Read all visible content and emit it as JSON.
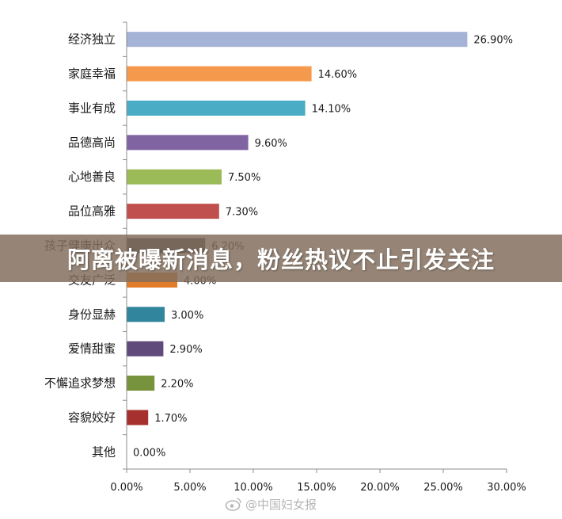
{
  "banner": {
    "title": "阿离被曝新消息，粉丝热议不止引发关注"
  },
  "watermark": {
    "text": "@中国妇女报",
    "icon": "weibo-icon"
  },
  "chart_data": {
    "type": "bar",
    "orientation": "horizontal",
    "categories": [
      "经济独立",
      "家庭幸福",
      "事业有成",
      "品德高尚",
      "心地善良",
      "品位高雅",
      "孩子健康出众",
      "交友广泛",
      "身份显赫",
      "爱情甜蜜",
      "不懈追求梦想",
      "容貌姣好",
      "其他"
    ],
    "values": [
      26.9,
      14.6,
      14.1,
      9.6,
      7.5,
      7.3,
      6.2,
      4.0,
      3.0,
      2.9,
      2.2,
      1.7,
      0.0
    ],
    "value_labels": [
      "26.90%",
      "14.60%",
      "14.10%",
      "9.60%",
      "7.50%",
      "7.30%",
      "6.20%",
      "4.00%",
      "3.00%",
      "2.90%",
      "2.20%",
      "1.70%",
      "0.00%"
    ],
    "colors": [
      "#a4b3d6",
      "#f59a4d",
      "#4bacc6",
      "#8064a2",
      "#9bbb59",
      "#c0504d",
      "#3f3f55",
      "#e07b2a",
      "#31859c",
      "#604a7b",
      "#77933c",
      "#a5302d",
      "#7f7f7f"
    ],
    "xlim": [
      0,
      30
    ],
    "xticks": [
      0,
      5,
      10,
      15,
      20,
      25,
      30
    ],
    "xtick_labels": [
      "0.00%",
      "5.00%",
      "10.00%",
      "15.00%",
      "20.00%",
      "25.00%",
      "30.00%"
    ],
    "grid": false
  }
}
